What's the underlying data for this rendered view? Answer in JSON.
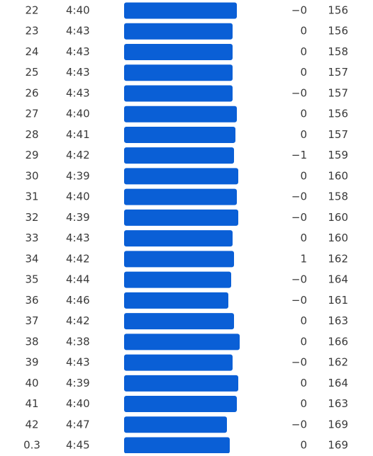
{
  "table": {
    "rows": [
      [
        22,
        "4:40",
        "−0",
        156
      ],
      [
        23,
        "4:43",
        "0",
        156
      ],
      [
        24,
        "4:43",
        "0",
        158
      ],
      [
        25,
        "4:43",
        "0",
        157
      ],
      [
        26,
        "4:43",
        "−0",
        157
      ],
      [
        27,
        "4:40",
        "0",
        156
      ],
      [
        28,
        "4:41",
        "0",
        157
      ],
      [
        29,
        "4:42",
        "−1",
        159
      ],
      [
        30,
        "4:39",
        "0",
        160
      ],
      [
        31,
        "4:40",
        "−0",
        158
      ],
      [
        32,
        "4:39",
        "−0",
        160
      ],
      [
        33,
        "4:43",
        "0",
        160
      ],
      [
        34,
        "4:42",
        "1",
        162
      ],
      [
        35,
        "4:44",
        "−0",
        164
      ],
      [
        36,
        "4:46",
        "−0",
        161
      ],
      [
        37,
        "4:42",
        "0",
        163
      ],
      [
        38,
        "4:38",
        "0",
        166
      ],
      [
        39,
        "4:43",
        "−0",
        162
      ],
      [
        40,
        "4:39",
        "0",
        164
      ],
      [
        41,
        "4:40",
        "0",
        163
      ],
      [
        42,
        "4:47",
        "−0",
        169
      ],
      [
        0.3,
        "4:45",
        "0",
        169
      ]
    ]
  }
}
